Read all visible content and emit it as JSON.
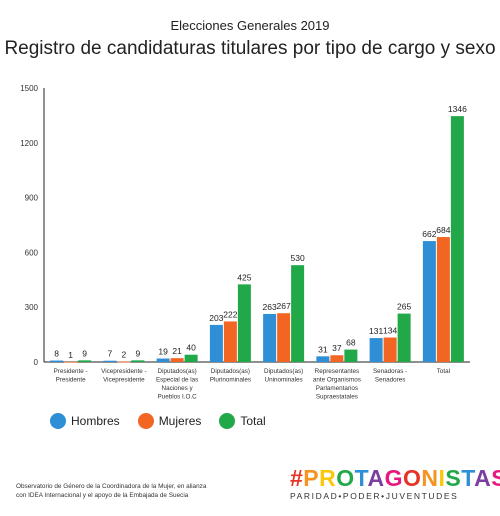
{
  "header": {
    "supertitle": "Elecciones Generales 2019",
    "title": "Registro de candidaturas titulares por tipo de cargo y sexo"
  },
  "chart_data": {
    "type": "bar",
    "title": "Registro de candidaturas titulares por tipo de cargo y sexo",
    "xlabel": "",
    "ylabel": "",
    "ylim": [
      0,
      1500
    ],
    "yticks": [
      0,
      300,
      600,
      900,
      1200,
      1500
    ],
    "grid": false,
    "legend_position": "bottom-left",
    "categories": [
      [
        "Presidente -",
        "Presidente"
      ],
      [
        "Vicepresidente -",
        "Vicepresidente"
      ],
      [
        "Diputados(as)",
        "Especial de las",
        "Naciones y",
        "Pueblos I.O.C"
      ],
      [
        "Diputados(as)",
        "Plurinominales"
      ],
      [
        "Diputados(as)",
        "Uninominales"
      ],
      [
        "Representantes",
        "ante Organismos",
        "Parlamentarios",
        "Supraestatales"
      ],
      [
        "Senadoras -",
        "Senadores"
      ],
      [
        "Total"
      ]
    ],
    "series": [
      {
        "name": "Hombres",
        "color": "#2e8fd6",
        "values": [
          8,
          7,
          19,
          203,
          263,
          31,
          131,
          662
        ]
      },
      {
        "name": "Mujeres",
        "color": "#f26522",
        "values": [
          1,
          2,
          21,
          222,
          267,
          37,
          134,
          684
        ]
      },
      {
        "name": "Total",
        "color": "#21a849",
        "values": [
          9,
          9,
          40,
          425,
          530,
          68,
          265,
          1346
        ]
      }
    ]
  },
  "footer": {
    "note_lines": [
      "Observatorio de Género de la Coordinadora de la Mujer, en alianza",
      "con IDEA Internacional y el apoyo de la Embajada de Suecia"
    ],
    "brand_name": "#PROTAGONISTAS",
    "brand_tagline": "PARIDAD•PODER•JUVENTUDES",
    "brand_colors": [
      "#e63323",
      "#f7931e",
      "#f9c80e",
      "#21a849",
      "#2e8fd6",
      "#7b3fa0",
      "#e6197e"
    ]
  }
}
